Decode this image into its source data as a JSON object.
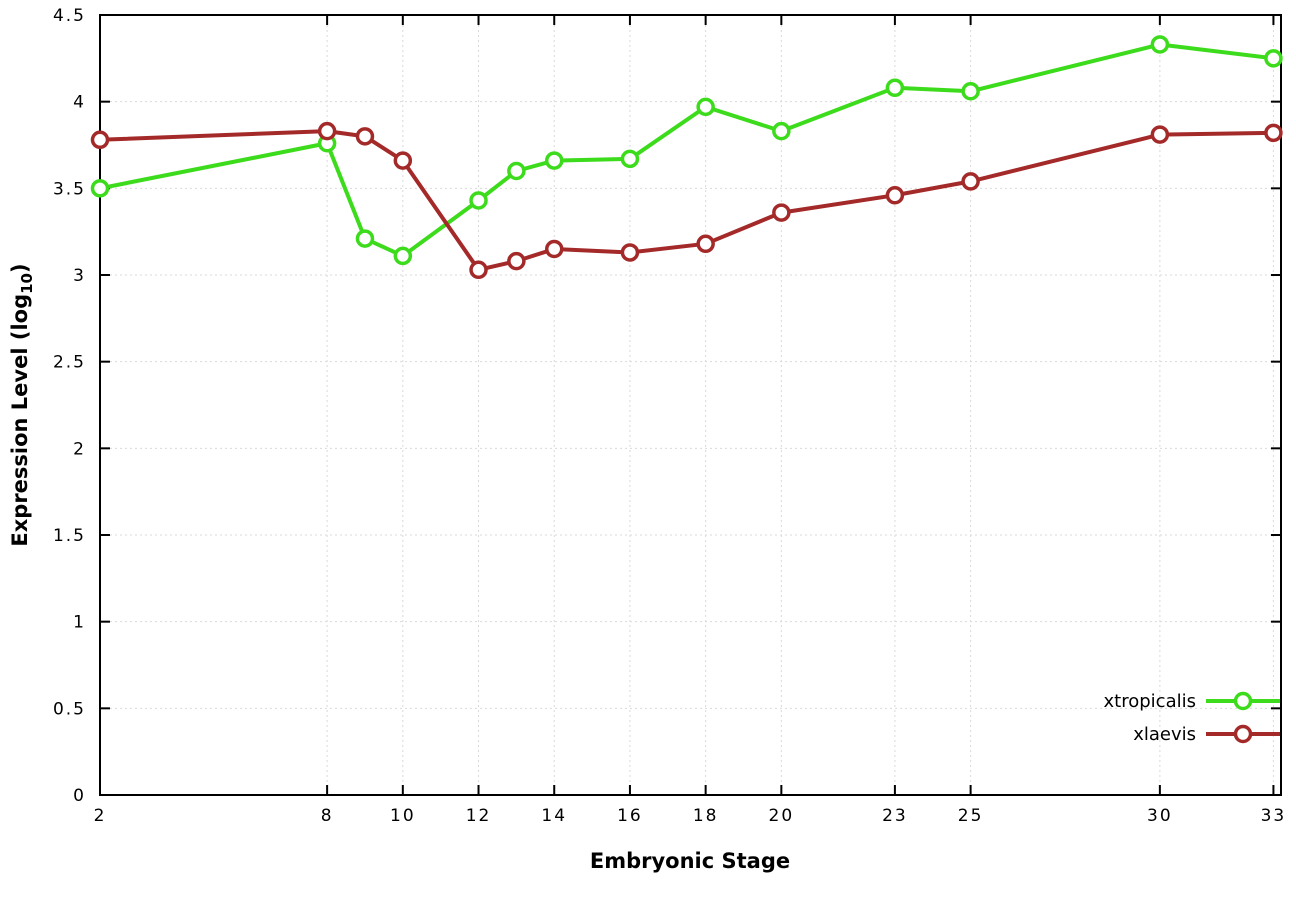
{
  "page": {
    "background": "#ffffff"
  },
  "chart_data": {
    "type": "line",
    "title": "",
    "xlabel": "Embryonic Stage",
    "ylabel": {
      "main": "Expression Level (log",
      "sub": "10",
      "suffix": ")"
    },
    "xlim": [
      2,
      33.2
    ],
    "ylim": [
      0,
      4.5
    ],
    "grid": true,
    "legend_position": "inside bottom-right",
    "x_ticks": [
      {
        "v": 2,
        "label": "2"
      },
      {
        "v": 8,
        "label": "8"
      },
      {
        "v": 10,
        "label": "10"
      },
      {
        "v": 12,
        "label": "12"
      },
      {
        "v": 14,
        "label": "14"
      },
      {
        "v": 16,
        "label": "16"
      },
      {
        "v": 18,
        "label": "18"
      },
      {
        "v": 20,
        "label": "20"
      },
      {
        "v": 23,
        "label": "23"
      },
      {
        "v": 25,
        "label": "25"
      },
      {
        "v": 30,
        "label": "30"
      },
      {
        "v": 33,
        "label": "33"
      }
    ],
    "y_ticks": [
      {
        "v": 0,
        "label": "0"
      },
      {
        "v": 0.5,
        "label": "0.5"
      },
      {
        "v": 1,
        "label": "1"
      },
      {
        "v": 1.5,
        "label": "1.5"
      },
      {
        "v": 2,
        "label": "2"
      },
      {
        "v": 2.5,
        "label": "2.5"
      },
      {
        "v": 3,
        "label": "3"
      },
      {
        "v": 3.5,
        "label": "3.5"
      },
      {
        "v": 4,
        "label": "4"
      },
      {
        "v": 4.5,
        "label": "4.5"
      }
    ],
    "x": [
      2,
      8,
      9,
      10,
      12,
      13,
      14,
      16,
      18,
      20,
      23,
      25,
      30,
      33
    ],
    "series": [
      {
        "name": "xtropicalis",
        "color": "#3cdb1c",
        "values": [
          3.5,
          3.76,
          3.21,
          3.11,
          3.43,
          3.6,
          3.66,
          3.67,
          3.97,
          3.83,
          4.08,
          4.06,
          4.33,
          4.25
        ]
      },
      {
        "name": "xlaevis",
        "color": "#a42a2a",
        "values": [
          3.78,
          3.83,
          3.8,
          3.66,
          3.03,
          3.08,
          3.15,
          3.13,
          3.18,
          3.36,
          3.46,
          3.54,
          3.81,
          3.82
        ]
      }
    ],
    "colors": {
      "grid": "#d9d9d9",
      "axis": "#000000",
      "text": "#000000"
    }
  }
}
